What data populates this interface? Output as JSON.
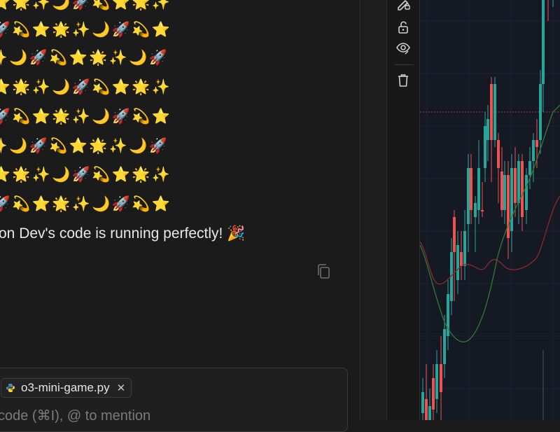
{
  "chat": {
    "emoji_rows": [
      [
        "⭐",
        "🌟",
        "✨",
        "🌙",
        "🚀",
        "💫",
        "⭐",
        "🌟",
        "✨"
      ],
      [
        "🚀",
        "💫",
        "⭐",
        "🌟",
        "✨",
        "🌙",
        "🚀",
        "💫",
        "⭐"
      ],
      [
        "✨",
        "🌙",
        "🚀",
        "💫",
        "⭐",
        "🌟",
        "✨",
        "🌙",
        "🚀"
      ],
      [
        "⭐",
        "🌟",
        "✨",
        "🌙",
        "🚀",
        "💫",
        "⭐",
        "🌟",
        "✨"
      ],
      [
        "🚀",
        "💫",
        "⭐",
        "🌟",
        "✨",
        "🌙",
        "🚀",
        "💫",
        "⭐"
      ],
      [
        "✨",
        "🌙",
        "🚀",
        "💫",
        "⭐",
        "🌟",
        "✨",
        "🌙",
        "🚀"
      ],
      [
        "⭐",
        "🌟",
        "✨",
        "🌙",
        "🚀",
        "💫",
        "⭐",
        "🌟",
        "✨"
      ],
      [
        "🚀",
        "💫",
        "⭐",
        "🌟",
        "✨",
        "🌙",
        "🚀",
        "💫",
        "⭐"
      ]
    ],
    "message": "on Dev's code is running perfectly! 🎉",
    "copy_icon": "copy-icon"
  },
  "composer": {
    "file_chip": {
      "label": "o3-mini-game.py",
      "icon": "python-icon",
      "close": "✕"
    },
    "placeholder": "code (⌘I), @ to mention"
  },
  "toolbar": {
    "icons": [
      "pencil-lock-icon",
      "unlock-icon",
      "eye-icon",
      "trash-icon"
    ]
  },
  "colors": {
    "bg": "#1b1b1b",
    "chart_bg": "#151924",
    "up": "#26a69a",
    "down": "#ef5350",
    "ma_fast": "#2e7d32",
    "ma_slow": "#8b2a2a"
  }
}
